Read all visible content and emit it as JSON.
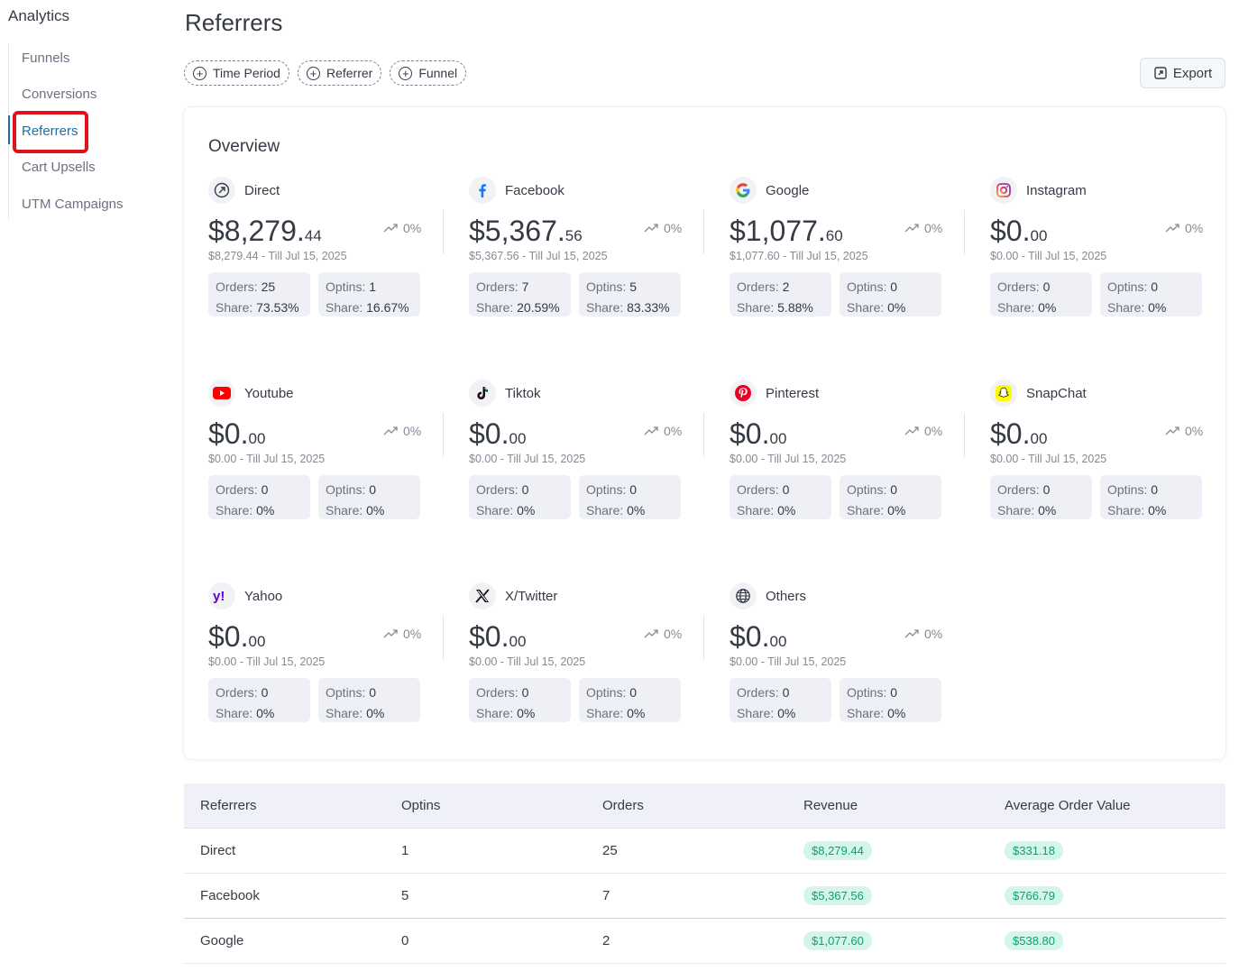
{
  "sidebar": {
    "title": "Analytics",
    "items": [
      {
        "label": "Funnels"
      },
      {
        "label": "Conversions"
      },
      {
        "label": "Referrers"
      },
      {
        "label": "Cart Upsells"
      },
      {
        "label": "UTM Campaigns"
      }
    ],
    "active_index": 2
  },
  "header": {
    "title": "Referrers",
    "filters": [
      "Time Period",
      "Referrer",
      "Funnel"
    ],
    "export_label": "Export"
  },
  "overview": {
    "title": "Overview",
    "referrers": [
      {
        "name": "Direct",
        "icon": "direct-arrow-icon",
        "amount_main": "$8,279.",
        "amount_cents": "44",
        "trend": "0%",
        "till": "$8,279.44 - Till Jul 15, 2025",
        "orders": "25",
        "orders_share": "73.53%",
        "optins": "1",
        "optins_share": "16.67%"
      },
      {
        "name": "Facebook",
        "icon": "facebook-icon",
        "amount_main": "$5,367.",
        "amount_cents": "56",
        "trend": "0%",
        "till": "$5,367.56 - Till Jul 15, 2025",
        "orders": "7",
        "orders_share": "20.59%",
        "optins": "5",
        "optins_share": "83.33%"
      },
      {
        "name": "Google",
        "icon": "google-icon",
        "amount_main": "$1,077.",
        "amount_cents": "60",
        "trend": "0%",
        "till": "$1,077.60 - Till Jul 15, 2025",
        "orders": "2",
        "orders_share": "5.88%",
        "optins": "0",
        "optins_share": "0%"
      },
      {
        "name": "Instagram",
        "icon": "instagram-icon",
        "amount_main": "$0.",
        "amount_cents": "00",
        "trend": "0%",
        "till": "$0.00 - Till Jul 15, 2025",
        "orders": "0",
        "orders_share": "0%",
        "optins": "0",
        "optins_share": "0%"
      },
      {
        "name": "Youtube",
        "icon": "youtube-icon",
        "amount_main": "$0.",
        "amount_cents": "00",
        "trend": "0%",
        "till": "$0.00 - Till Jul 15, 2025",
        "orders": "0",
        "orders_share": "0%",
        "optins": "0",
        "optins_share": "0%"
      },
      {
        "name": "Tiktok",
        "icon": "tiktok-icon",
        "amount_main": "$0.",
        "amount_cents": "00",
        "trend": "0%",
        "till": "$0.00 - Till Jul 15, 2025",
        "orders": "0",
        "orders_share": "0%",
        "optins": "0",
        "optins_share": "0%"
      },
      {
        "name": "Pinterest",
        "icon": "pinterest-icon",
        "amount_main": "$0.",
        "amount_cents": "00",
        "trend": "0%",
        "till": "$0.00 - Till Jul 15, 2025",
        "orders": "0",
        "orders_share": "0%",
        "optins": "0",
        "optins_share": "0%"
      },
      {
        "name": "SnapChat",
        "icon": "snapchat-icon",
        "amount_main": "$0.",
        "amount_cents": "00",
        "trend": "0%",
        "till": "$0.00 - Till Jul 15, 2025",
        "orders": "0",
        "orders_share": "0%",
        "optins": "0",
        "optins_share": "0%"
      },
      {
        "name": "Yahoo",
        "icon": "yahoo-icon",
        "amount_main": "$0.",
        "amount_cents": "00",
        "trend": "0%",
        "till": "$0.00 - Till Jul 15, 2025",
        "orders": "0",
        "orders_share": "0%",
        "optins": "0",
        "optins_share": "0%"
      },
      {
        "name": "X/Twitter",
        "icon": "x-twitter-icon",
        "amount_main": "$0.",
        "amount_cents": "00",
        "trend": "0%",
        "till": "$0.00 - Till Jul 15, 2025",
        "orders": "0",
        "orders_share": "0%",
        "optins": "0",
        "optins_share": "0%"
      },
      {
        "name": "Others",
        "icon": "globe-icon",
        "amount_main": "$0.",
        "amount_cents": "00",
        "trend": "0%",
        "till": "$0.00 - Till Jul 15, 2025",
        "orders": "0",
        "orders_share": "0%",
        "optins": "0",
        "optins_share": "0%"
      }
    ],
    "labels": {
      "orders": "Orders: ",
      "optins": "Optins: ",
      "share": "Share: "
    }
  },
  "table": {
    "columns": [
      "Referrers",
      "Optins",
      "Orders",
      "Revenue",
      "Average Order Value"
    ],
    "rows": [
      {
        "referrer": "Direct",
        "optins": "1",
        "orders": "25",
        "revenue": "$8,279.44",
        "aov": "$331.18"
      },
      {
        "referrer": "Facebook",
        "optins": "5",
        "orders": "7",
        "revenue": "$5,367.56",
        "aov": "$766.79"
      },
      {
        "referrer": "Google",
        "optins": "0",
        "orders": "2",
        "revenue": "$1,077.60",
        "aov": "$538.80"
      }
    ]
  },
  "colors": {
    "accent": "#1e6fa7",
    "highlight": "#e0121b",
    "badge_bg": "#d3f5ea",
    "badge_text": "#0e9f78"
  }
}
